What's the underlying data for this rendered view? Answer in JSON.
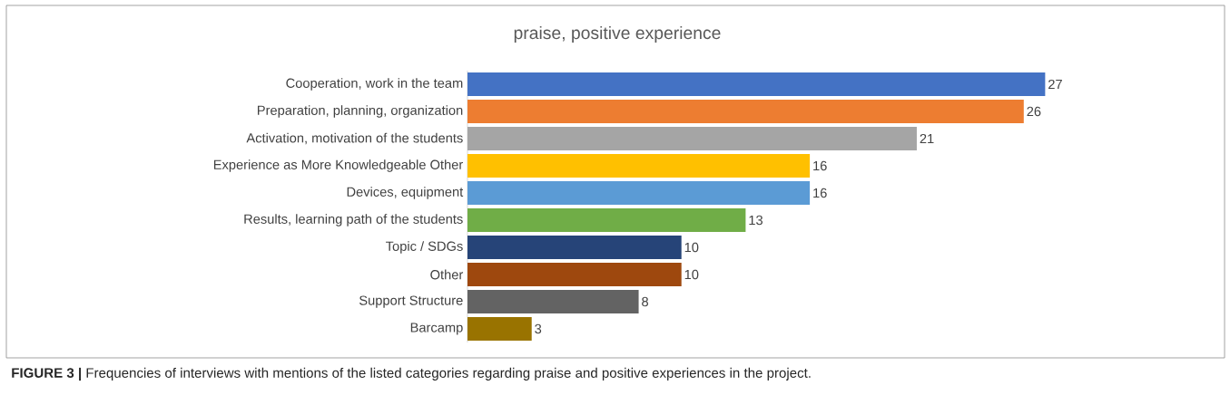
{
  "chart_data": {
    "type": "bar",
    "orientation": "horizontal",
    "title": "praise, positive experience",
    "categories": [
      "Cooperation, work in the team",
      "Preparation, planning, organization",
      "Activation, motivation of the students",
      "Experience as More Knowledgeable Other",
      "Devices, equipment",
      "Results, learning path of the students",
      "Topic / SDGs",
      "Other",
      "Support Structure",
      "Barcamp"
    ],
    "values": [
      27,
      26,
      21,
      16,
      16,
      13,
      10,
      10,
      8,
      3
    ],
    "colors": [
      "#4472c4",
      "#ed7d31",
      "#a5a5a5",
      "#ffc000",
      "#5b9bd5",
      "#70ad47",
      "#264478",
      "#9e480e",
      "#636363",
      "#997300"
    ],
    "data_labels": true,
    "annotations": [
      "**FIGURE 3 |** Frequencies of interviews with mentions of the listed categories regarding praise and positive experiences in the project."
    ]
  }
}
